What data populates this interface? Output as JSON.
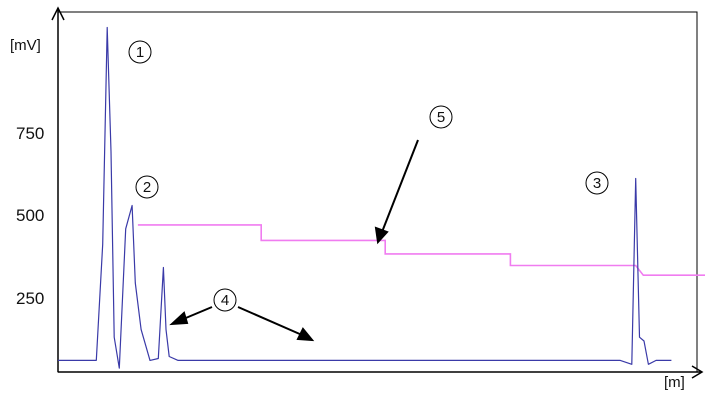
{
  "chart_data": {
    "type": "line",
    "ylabel": "[mV]",
    "xlabel": "[m]",
    "y_ticks": [
      250,
      500,
      750
    ],
    "ylim": [
      70,
      1000
    ],
    "xlim": [
      0,
      100
    ],
    "colors": {
      "signal": "#3a3aa8",
      "baseline": "#f07cf0",
      "axis": "#000000",
      "callout": "#000000"
    },
    "series": [
      {
        "role": "signal",
        "x": [
          0,
          6,
          7,
          7.7,
          8.3,
          8.8,
          9.6,
          10.6,
          11.6,
          12.1,
          13.0,
          14.4,
          15.7,
          16.5,
          16.9,
          17.4,
          18.8,
          20,
          40,
          60,
          80,
          88,
          89.8,
          90.4,
          91.0,
          91.7,
          92.4,
          93.6,
          96
        ],
        "y": [
          100,
          100,
          400,
          960,
          640,
          160,
          80,
          440,
          500,
          300,
          180,
          100,
          105,
          340,
          180,
          110,
          100,
          100,
          100,
          100,
          100,
          100,
          90,
          570,
          160,
          150,
          90,
          100,
          100
        ]
      },
      {
        "role": "baseline",
        "x": [
          12.5,
          31.8,
          31.8,
          51.2,
          51.2,
          70.8,
          70.8,
          90.4,
          90.4,
          91.6,
          91.6,
          101.8
        ],
        "y": [
          450,
          450,
          410,
          410,
          375,
          375,
          345,
          345,
          345,
          320,
          320,
          320
        ]
      }
    ],
    "annotations": [
      "1",
      "2",
      "3",
      "4",
      "5"
    ]
  }
}
